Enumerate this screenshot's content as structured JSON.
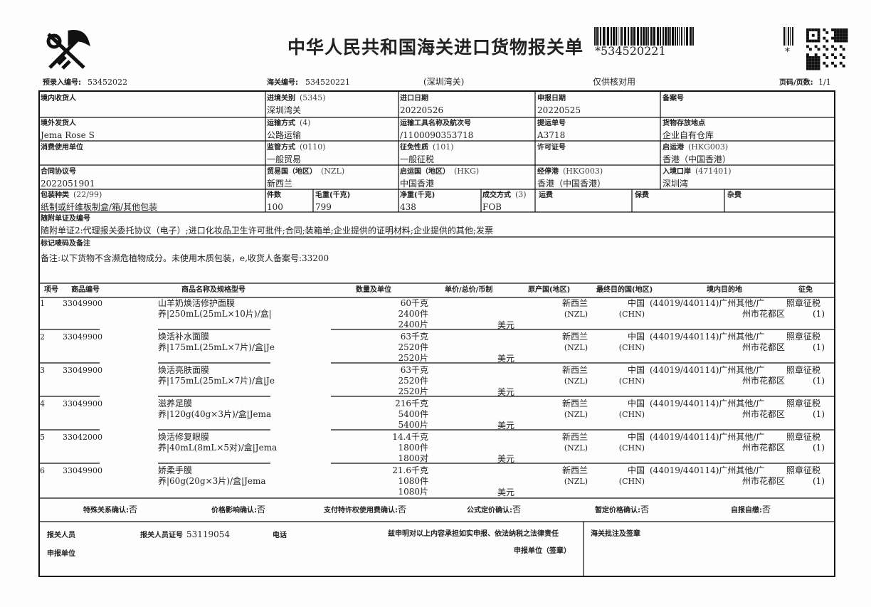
{
  "header": {
    "title": "中华人民共和国海关进口货物报关单",
    "barcode_text": "*534520221",
    "small_barcode_text": "*",
    "preentry_label": "预录入编号:",
    "preentry_no": "53452022",
    "customs_no_label": "海关编号:",
    "customs_no": "534520221",
    "customs_office": "(深圳湾关)",
    "note": "仅供核对用",
    "page_label": "页码/页数:",
    "page": "1/1"
  },
  "fields": [
    {
      "label": "境内收货人"
    },
    {
      "label": "进境关别",
      "code": "(5345)",
      "value": "深圳湾关"
    },
    {
      "label": "进口日期",
      "value": "20220526"
    },
    {
      "label": "申报日期",
      "value": "20220525"
    },
    {
      "label": "备案号"
    },
    {
      "label": "境外发货人",
      "value": "Jema Rose S"
    },
    {
      "label": "运输方式",
      "code": "(4)",
      "value": "公路运输"
    },
    {
      "label": "运输工具名称及航次号",
      "value": "/1100090353718"
    },
    {
      "label": "提运单号",
      "value": "A3718"
    },
    {
      "label": "货物存放地点",
      "value": "企业自有仓库"
    },
    {
      "label": "消费使用单位"
    },
    {
      "label": "监管方式",
      "code": "(0110)",
      "value": "一般贸易"
    },
    {
      "label": "征免性质",
      "code": "(101)",
      "value": "一般征税"
    },
    {
      "label": "许可证号"
    },
    {
      "label": "启运港",
      "code": "(HKG003)",
      "value": "香港（中国香港）"
    },
    {
      "label": "合同协议号",
      "value": "2022051901"
    },
    {
      "label": "贸易国（地区）",
      "code": "(NZL)",
      "value": "新西兰"
    },
    {
      "label": "启运国（地区）",
      "code": "(HKG)",
      "value": "中国香港"
    },
    {
      "label": "经停港",
      "code": "(HKG003)",
      "value": "香港（中国香港）"
    },
    {
      "label": "入境口岸",
      "code": "(471401)",
      "value": "深圳湾"
    },
    {
      "label": "包装种类",
      "code": "(22/99)",
      "value": "纸制或纤维板制盒/箱/其他包装"
    },
    {
      "label": "件数",
      "value": "100"
    },
    {
      "label": "毛重(千克)",
      "value": "799"
    },
    {
      "label": "净重(千克)",
      "value": "438"
    },
    {
      "label": "成交方式",
      "code": "(3)",
      "value": "FOB"
    },
    {
      "label": "运费"
    },
    {
      "label": "保费"
    },
    {
      "label": "杂费"
    },
    {
      "label": "随附单证及编号",
      "value": "随附单证2:代理报关委托协议（电子）;进口化妆品卫生许可批件;合同;装箱单;企业提供的证明材料;企业提供的其他;发票"
    },
    {
      "label": "标记唛码及备注",
      "value": "备注:以下货物不含濒危植物成分。未使用木质包装，e,收货人备案号:33200"
    }
  ],
  "items_header": [
    "项号",
    "商品编号",
    "商品名称及规格型号",
    "数量及单位",
    "单价/总价/币制",
    "原产国(地区)",
    "最终目的国(地区)",
    "境内目的地",
    "征免"
  ],
  "items": [
    {
      "no": "1",
      "code": "33049900",
      "name": "山羊奶焕活修护面膜",
      "spec": "养|250mL(25mL×10片)/盒|",
      "qty": [
        "60千克",
        "2400件",
        "2400片"
      ],
      "currency": "美元",
      "origin": "新西兰",
      "origin_code": "(NZL)",
      "destination": "中国",
      "destination_code": "(CHN)",
      "domestic": "(44019/440114)广州其他/广",
      "domestic2": "州市花都区",
      "exemption": "照章征税",
      "exemption_code": "(1)"
    },
    {
      "no": "2",
      "code": "33049900",
      "name": "焕活补水面膜",
      "spec": "养|175mL(25mL×7片)/盒|Je",
      "qty": [
        "63千克",
        "2520件",
        "2520片"
      ],
      "currency": "美元",
      "origin": "新西兰",
      "origin_code": "(NZL)",
      "destination": "中国",
      "destination_code": "(CHN)",
      "domestic": "(44019/440114)广州其他/广",
      "domestic2": "州市花都区",
      "exemption": "照章征税",
      "exemption_code": "(1)"
    },
    {
      "no": "3",
      "code": "33049900",
      "name": "焕活亮肤面膜",
      "spec": "养|175mL(25mL×7片)/盒|Je",
      "qty": [
        "63千克",
        "2520件",
        "2520片"
      ],
      "currency": "美元",
      "origin": "新西兰",
      "origin_code": "(NZL)",
      "destination": "中国",
      "destination_code": "(CHN)",
      "domestic": "(44019/440114)广州其他/广",
      "domestic2": "州市花都区",
      "exemption": "照章征税",
      "exemption_code": "(1)"
    },
    {
      "no": "4",
      "code": "33049900",
      "name": "滋养足膜",
      "spec": "养|120g(40g×3片)/盒|Jema",
      "qty": [
        "216千克",
        "5400件",
        "5400片"
      ],
      "currency": "美元",
      "origin": "新西兰",
      "origin_code": "(NZL)",
      "destination": "中国",
      "destination_code": "(CHN)",
      "domestic": "(44019/440114)广州其他/广",
      "domestic2": "州市花都区",
      "exemption": "照章征税",
      "exemption_code": "(1)"
    },
    {
      "no": "5",
      "code": "33042000",
      "name": "焕活修复眼膜",
      "spec": "养|40mL(8mL×5对)/盒|Jema",
      "qty": [
        "14.4千克",
        "1800件",
        "1800对"
      ],
      "currency": "美元",
      "origin": "新西兰",
      "origin_code": "(NZL)",
      "destination": "中国",
      "destination_code": "(CHN)",
      "domestic": "(44019/440114)广州其他/广",
      "domestic2": "州市花都区",
      "exemption": "照章征税",
      "exemption_code": "(1)"
    },
    {
      "no": "6",
      "code": "33049900",
      "name": "娇柔手膜",
      "spec": "养|60g(20g×3片)/盒|Jema",
      "qty": [
        "21.6千克",
        "1080件",
        "1080片"
      ],
      "currency": "美元",
      "origin": "新西兰",
      "origin_code": "(NZL)",
      "destination": "中国",
      "destination_code": "(CHN)",
      "domestic": "(44019/440114)广州其他/广",
      "domestic2": "州市花都区",
      "exemption": "照章征税",
      "exemption_code": "(1)"
    }
  ],
  "confirmations": [
    {
      "label": "特殊关系确认:",
      "value": "否"
    },
    {
      "label": "价格影响确认:",
      "value": "否"
    },
    {
      "label": "支付特许权使用费确认:",
      "value": "否"
    },
    {
      "label": "公式定价确认:",
      "value": "否"
    },
    {
      "label": "暂定价格确认:",
      "value": "否"
    },
    {
      "label": "自报自缴:",
      "value": "否"
    }
  ],
  "footer": {
    "declarant": "报关人员",
    "declarant_id_label": "报关人员证号",
    "declarant_id": "53119054",
    "phone": "电话",
    "statement": "兹申明对以上内容承担如实申报、依法纳税之法律责任",
    "customs_note": "海关批注及签章",
    "unit": "申报单位",
    "unit_seal": "申报单位（签章）"
  }
}
